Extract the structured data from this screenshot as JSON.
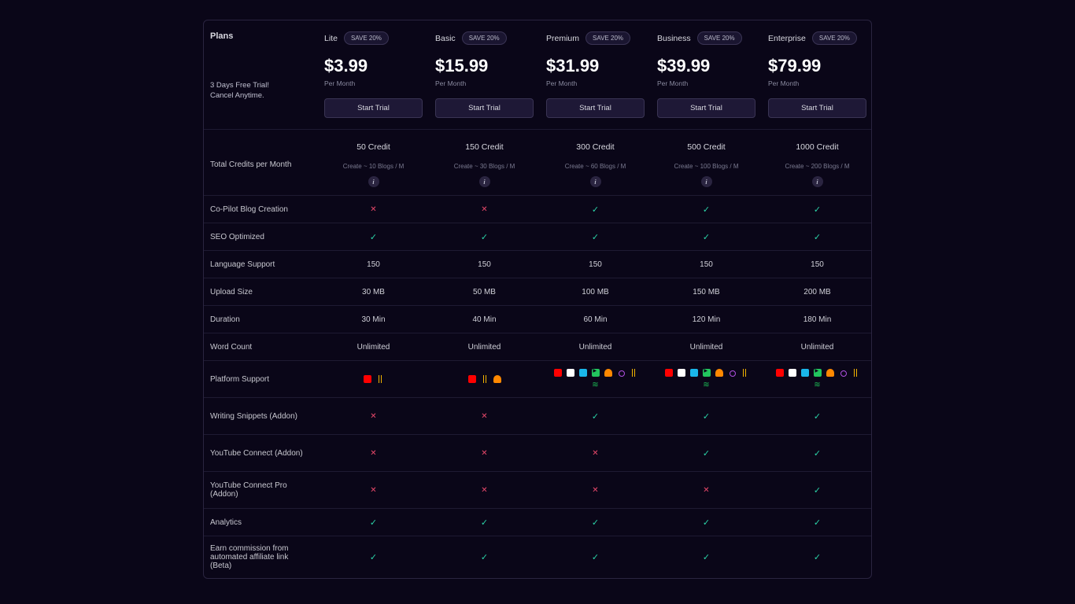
{
  "header": {
    "plans_label": "Plans",
    "trial_line1": "3 Days Free Trial!",
    "trial_line2": "Cancel Anytime.",
    "save_badge": "SAVE 20%",
    "per_month": "Per Month",
    "start_trial": "Start Trial"
  },
  "plans": [
    {
      "name": "Lite",
      "price": "$3.99"
    },
    {
      "name": "Basic",
      "price": "$15.99"
    },
    {
      "name": "Premium",
      "price": "$31.99"
    },
    {
      "name": "Business",
      "price": "$39.99"
    },
    {
      "name": "Enterprise",
      "price": "$79.99"
    }
  ],
  "credits": {
    "label": "Total Credits per Month",
    "values": [
      "50 Credit",
      "150 Credit",
      "300 Credit",
      "500 Credit",
      "1000 Credit"
    ],
    "sub": [
      "Create ~ 10 Blogs / M",
      "Create ~ 30 Blogs / M",
      "Create ~ 60 Blogs / M",
      "Create ~ 100 Blogs / M",
      "Create ~ 200 Blogs / M"
    ]
  },
  "features": [
    {
      "label": "Co-Pilot Blog Creation",
      "vals": [
        "x",
        "x",
        "c",
        "c",
        "c"
      ]
    },
    {
      "label": "SEO Optimized",
      "vals": [
        "c",
        "c",
        "c",
        "c",
        "c"
      ]
    },
    {
      "label": "Language Support",
      "vals": [
        "150",
        "150",
        "150",
        "150",
        "150"
      ]
    },
    {
      "label": "Upload Size",
      "vals": [
        "30 MB",
        "50 MB",
        "100 MB",
        "150 MB",
        "200 MB"
      ]
    },
    {
      "label": "Duration",
      "vals": [
        "30 Min",
        "40 Min",
        "60 Min",
        "120 Min",
        "180 Min"
      ]
    },
    {
      "label": "Word Count",
      "vals": [
        "Unlimited",
        "Unlimited",
        "Unlimited",
        "Unlimited",
        "Unlimited"
      ]
    },
    {
      "label": "Platform Support",
      "type": "platforms"
    },
    {
      "label": "Writing Snippets (Addon)",
      "tall": true,
      "vals": [
        "x",
        "x",
        "c",
        "c",
        "c"
      ]
    },
    {
      "label": "YouTube Connect (Addon)",
      "tall": true,
      "vals": [
        "x",
        "x",
        "x",
        "c",
        "c"
      ]
    },
    {
      "label": "YouTube Connect Pro (Addon)",
      "tall": true,
      "vals": [
        "x",
        "x",
        "x",
        "x",
        "c"
      ]
    },
    {
      "label": "Analytics",
      "vals": [
        "c",
        "c",
        "c",
        "c",
        "c"
      ]
    },
    {
      "label": "Earn commission from automated affiliate link (Beta)",
      "tall": true,
      "vals": [
        "c",
        "c",
        "c",
        "c",
        "c"
      ]
    }
  ],
  "platforms": {
    "small": [
      "yt",
      "gp"
    ],
    "medium": [
      "yt",
      "gp",
      "sc"
    ],
    "large": [
      "yt",
      "tk",
      "vm",
      "rm",
      "sc",
      "ap",
      "gp",
      "sp"
    ]
  },
  "plan_platforms": [
    "small",
    "medium",
    "large",
    "large",
    "large"
  ]
}
